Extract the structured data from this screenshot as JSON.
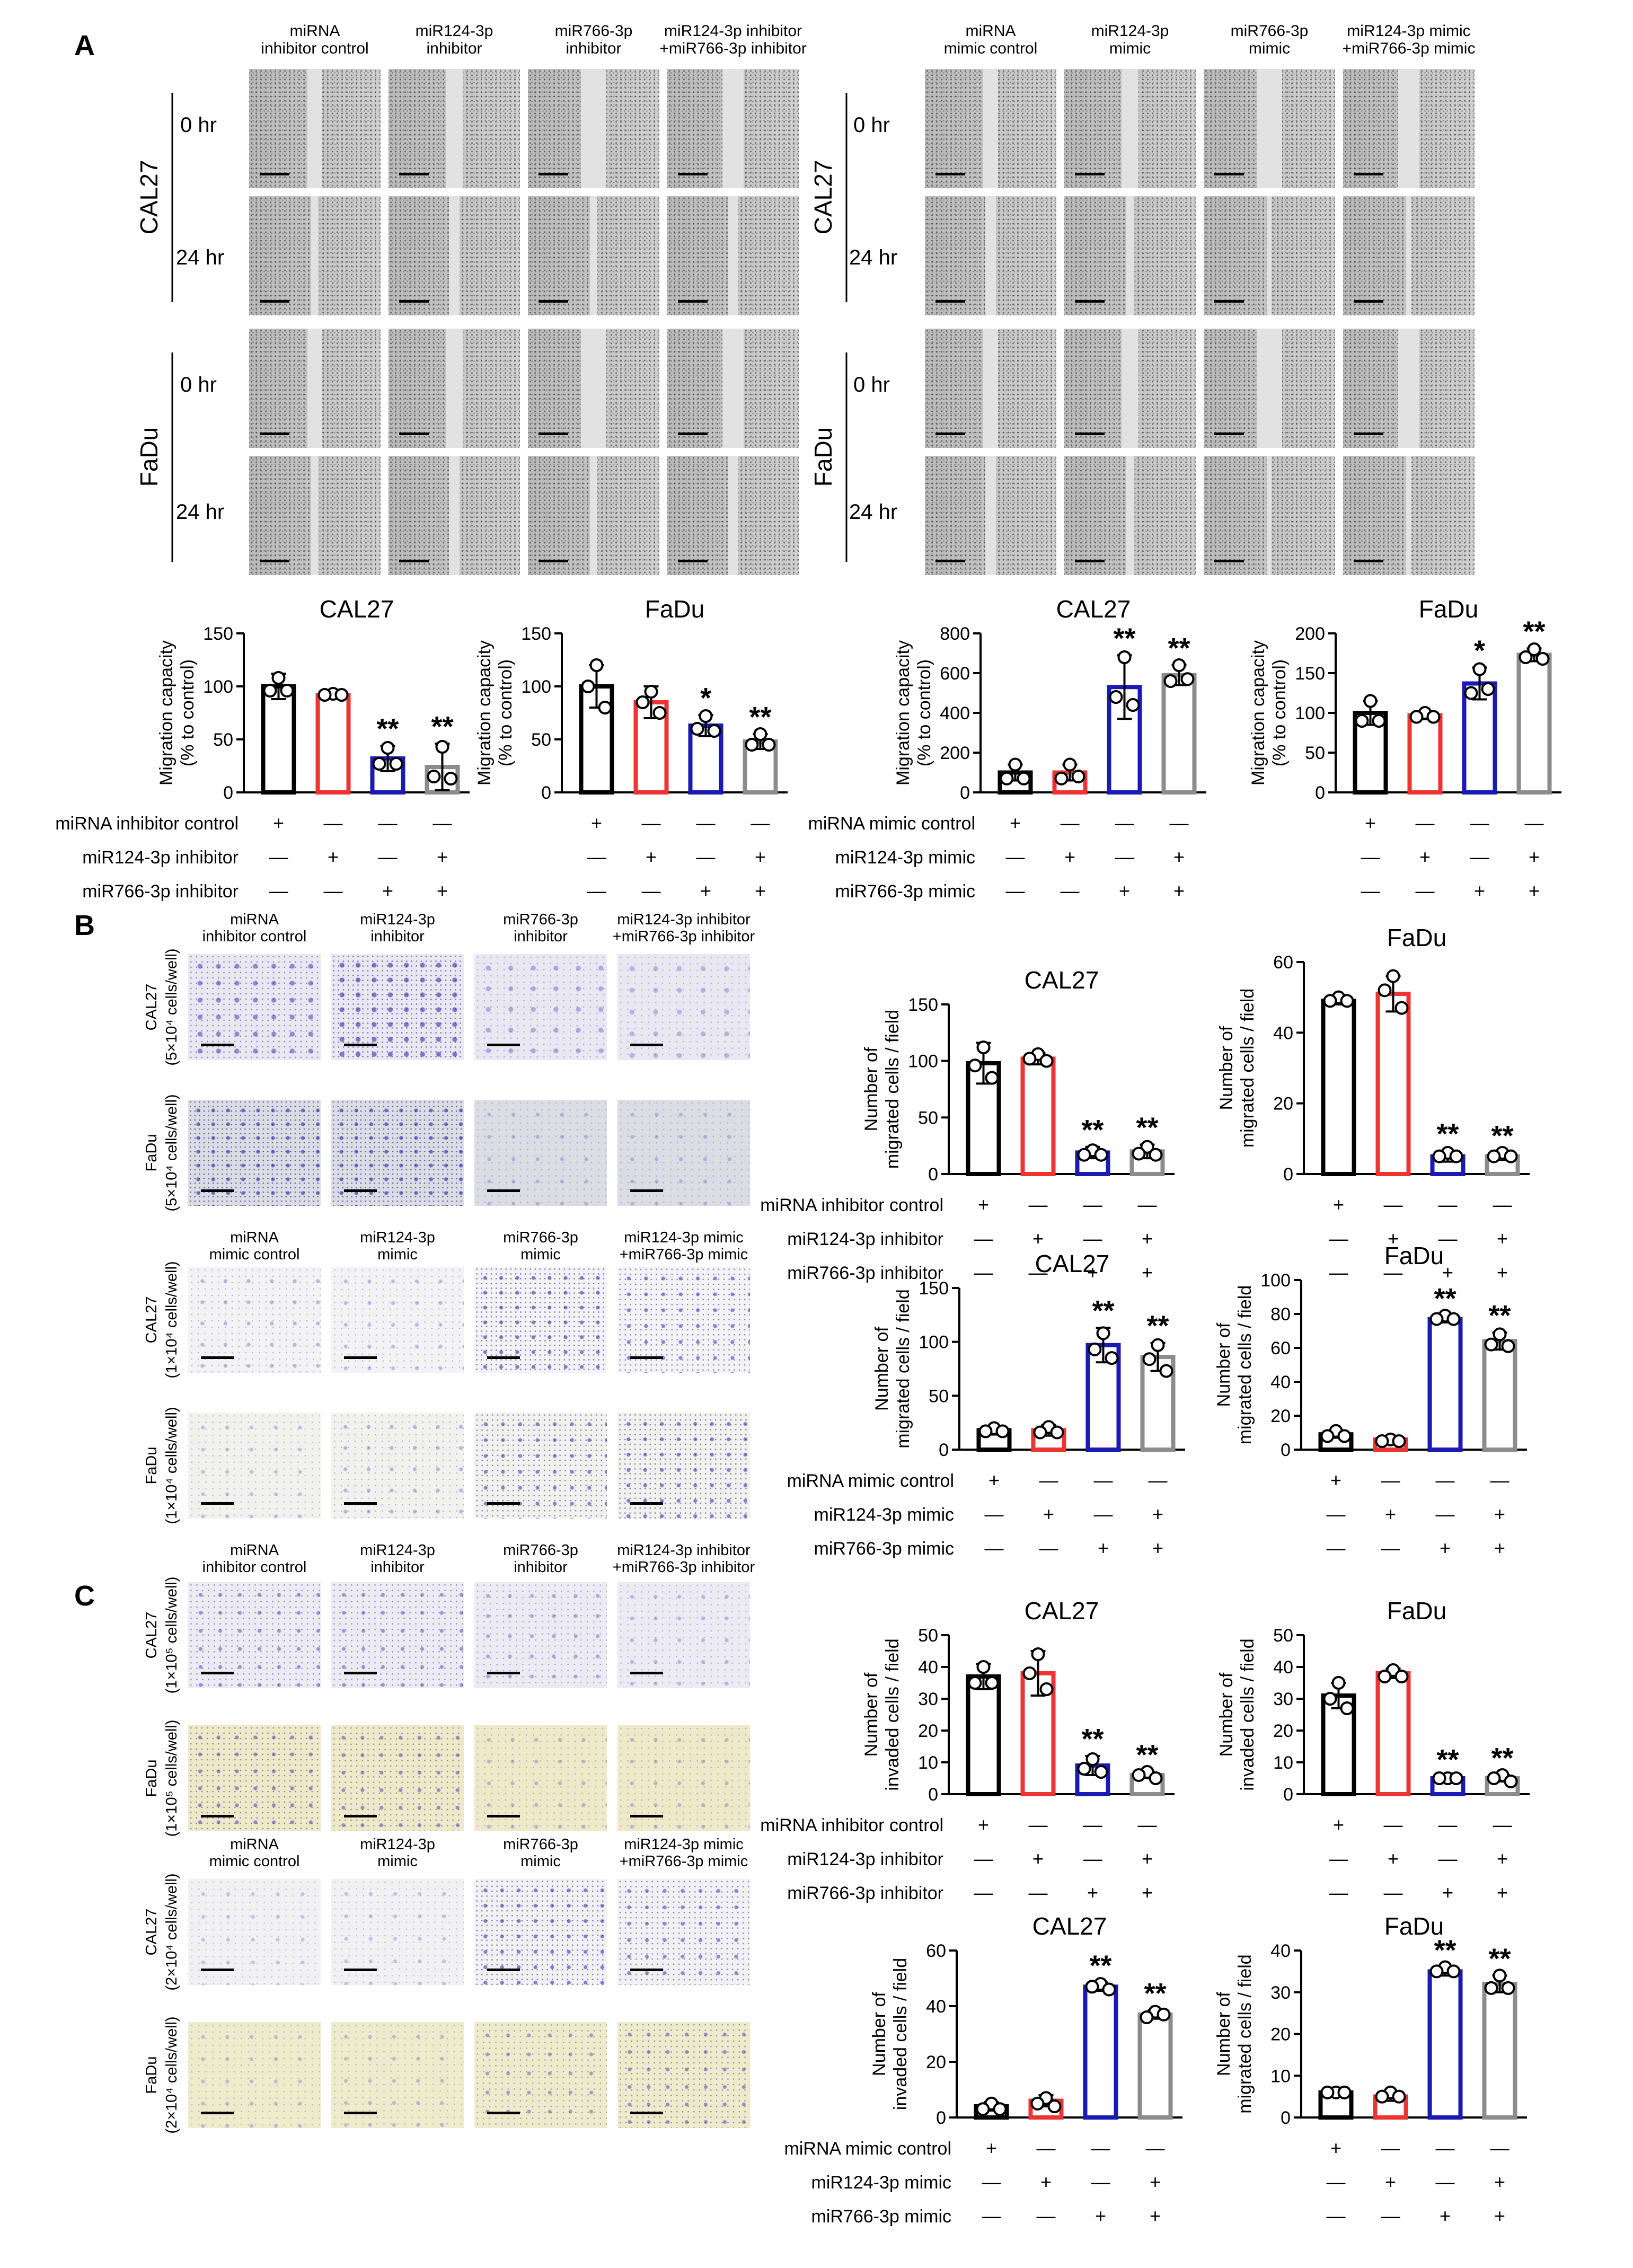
{
  "panels": {
    "a": "A",
    "b": "B",
    "c": "C"
  },
  "lbl": {
    "hr0": "0 hr",
    "hr24": "24 hr",
    "cal27": "CAL27",
    "fadu": "FaDu",
    "plus": "+",
    "minus": "—",
    "star1": "*",
    "star2": "**"
  },
  "cols": {
    "inh": [
      [
        "miRNA",
        "inhibitor control"
      ],
      [
        "miR124-3p",
        "inhibitor"
      ],
      [
        "miR766-3p",
        "inhibitor"
      ],
      [
        "miR124-3p inhibitor",
        "+miR766-3p inhibitor"
      ]
    ],
    "mim": [
      [
        "miRNA",
        "mimic control"
      ],
      [
        "miR124-3p",
        "mimic"
      ],
      [
        "miR766-3p",
        "mimic"
      ],
      [
        "miR124-3p mimic",
        "+miR766-3p mimic"
      ]
    ]
  },
  "density": {
    "b_cal27_inh": [
      "CAL27",
      "(5×10⁴ cells/well)"
    ],
    "b_fadu_inh": [
      "FaDu",
      "(5×10⁴ cells/well)"
    ],
    "b_cal27_mim": [
      "CAL27",
      "(1×10⁴ cells/well)"
    ],
    "b_fadu_mim": [
      "FaDu",
      "(1×10⁴ cells/well)"
    ],
    "c_cal27_inh": [
      "CAL27",
      "(1×10⁵ cells/well)"
    ],
    "c_fadu_inh": [
      "FaDu",
      "(1×10⁵ cells/well)"
    ],
    "c_cal27_mim": [
      "CAL27",
      "(2×10⁴ cells/well)"
    ],
    "c_fadu_mim": [
      "FaDu",
      "(2×10⁴ cells/well)"
    ]
  },
  "rows": {
    "inh": [
      "miRNA inhibitor control",
      "miR124-3p inhibitor",
      "miR766-3p inhibitor"
    ],
    "mim": [
      "miRNA mimic control",
      "miR124-3p mimic",
      "miR766-3p mimic"
    ]
  },
  "colors": {
    "control": "#000000",
    "mir124": "#ee3333",
    "mir766": "#1a1ab4",
    "combo": "#8c8c8c"
  },
  "chart_data": [
    {
      "id": "a1",
      "type": "bar",
      "title": "CAL27",
      "ylabel": [
        "Migration capacity",
        "(% to control)"
      ],
      "ylim": [
        0,
        150
      ],
      "yticks": [
        0,
        50,
        100,
        150
      ],
      "values": [
        100,
        92,
        32,
        24
      ],
      "errors": [
        12,
        2,
        12,
        22
      ],
      "points": [
        [
          108,
          96,
          96
        ],
        [
          93,
          92,
          92
        ],
        [
          42,
          27,
          27
        ],
        [
          43,
          15,
          13
        ]
      ],
      "stars": [
        "",
        "",
        "**",
        "**"
      ],
      "design": "inh"
    },
    {
      "id": "a2",
      "type": "bar",
      "title": "FaDu",
      "ylabel": [
        "Migration capacity",
        "(% to control)"
      ],
      "ylim": [
        0,
        150
      ],
      "yticks": [
        0,
        50,
        100,
        150
      ],
      "values": [
        100,
        85,
        63,
        48
      ],
      "errors": [
        20,
        15,
        10,
        7
      ],
      "points": [
        [
          120,
          100,
          80
        ],
        [
          95,
          85,
          75
        ],
        [
          72,
          60,
          58
        ],
        [
          55,
          45,
          45
        ]
      ],
      "stars": [
        "",
        "",
        "*",
        "**"
      ],
      "design": "inh"
    },
    {
      "id": "a3",
      "type": "bar",
      "title": "CAL27",
      "ylabel": [
        "Migration capacity",
        "(% to control)"
      ],
      "ylim": [
        0,
        800
      ],
      "yticks": [
        0,
        200,
        400,
        600,
        800
      ],
      "values": [
        100,
        100,
        530,
        590
      ],
      "errors": [
        40,
        40,
        160,
        50
      ],
      "points": [
        [
          140,
          70,
          70
        ],
        [
          140,
          70,
          80
        ],
        [
          680,
          480,
          440
        ],
        [
          640,
          560,
          570
        ]
      ],
      "stars": [
        "",
        "",
        "**",
        "**"
      ],
      "design": "mim"
    },
    {
      "id": "a4",
      "type": "bar",
      "title": "FaDu",
      "ylabel": [
        "Migration capacity",
        "(% to control)"
      ],
      "ylim": [
        0,
        200
      ],
      "yticks": [
        0,
        50,
        100,
        150,
        200
      ],
      "values": [
        100,
        97,
        137,
        173
      ],
      "errors": [
        15,
        5,
        20,
        8
      ],
      "points": [
        [
          115,
          90,
          90
        ],
        [
          100,
          95,
          95
        ],
        [
          155,
          125,
          130
        ],
        [
          180,
          170,
          168
        ]
      ],
      "stars": [
        "",
        "",
        "*",
        "**"
      ],
      "design": "mim"
    },
    {
      "id": "b1",
      "type": "bar",
      "title": "CAL27",
      "ylabel": [
        "Number of",
        "migrated cells / field"
      ],
      "ylim": [
        0,
        150
      ],
      "yticks": [
        0,
        50,
        100,
        150
      ],
      "values": [
        98,
        102,
        19,
        20
      ],
      "errors": [
        18,
        5,
        5,
        6
      ],
      "points": [
        [
          112,
          96,
          85
        ],
        [
          106,
          102,
          100
        ],
        [
          21,
          17,
          17
        ],
        [
          24,
          18,
          17
        ]
      ],
      "stars": [
        "",
        "",
        "**",
        "**"
      ],
      "design": "inh"
    },
    {
      "id": "b2",
      "type": "bar",
      "title": "FaDu",
      "ylabel": [
        "Number of",
        "migrated cells / field"
      ],
      "ylim": [
        0,
        60
      ],
      "yticks": [
        0,
        20,
        40,
        60
      ],
      "values": [
        49,
        51,
        5,
        5
      ],
      "errors": [
        1,
        5,
        1.5,
        1
      ],
      "points": [
        [
          50,
          49,
          49
        ],
        [
          56,
          52,
          47
        ],
        [
          6,
          5,
          5
        ],
        [
          6,
          5,
          5
        ]
      ],
      "stars": [
        "",
        "",
        "**",
        "**"
      ],
      "design": "inh"
    },
    {
      "id": "b3",
      "type": "bar",
      "title": "CAL27",
      "ylabel": [
        "Number of",
        "migrated cells / field"
      ],
      "ylim": [
        0,
        150
      ],
      "yticks": [
        0,
        50,
        100,
        150
      ],
      "values": [
        18,
        18,
        97,
        86
      ],
      "errors": [
        4,
        5,
        16,
        13
      ],
      "points": [
        [
          20,
          17,
          17
        ],
        [
          21,
          16,
          16
        ],
        [
          108,
          93,
          85
        ],
        [
          97,
          84,
          73
        ]
      ],
      "stars": [
        "",
        "",
        "**",
        "**"
      ],
      "design": "mim"
    },
    {
      "id": "b4",
      "type": "bar",
      "title": "FaDu",
      "ylabel": [
        "Number of",
        "migrated cells / field"
      ],
      "ylim": [
        0,
        100
      ],
      "yticks": [
        0,
        20,
        40,
        60,
        80,
        100
      ],
      "values": [
        9,
        6,
        77,
        64
      ],
      "errors": [
        2,
        2,
        2,
        5
      ],
      "points": [
        [
          11,
          8,
          8
        ],
        [
          6,
          5,
          5
        ],
        [
          79,
          77,
          77
        ],
        [
          68,
          62,
          61
        ]
      ],
      "stars": [
        "",
        "",
        "**",
        "**"
      ],
      "design": "mim"
    },
    {
      "id": "c1",
      "type": "bar",
      "title": "CAL27",
      "ylabel": [
        "Number of",
        "invaded cells / field"
      ],
      "ylim": [
        0,
        50
      ],
      "yticks": [
        0,
        10,
        20,
        30,
        40,
        50
      ],
      "values": [
        37,
        38,
        9,
        6
      ],
      "errors": [
        4,
        7,
        3,
        1
      ],
      "points": [
        [
          40,
          35,
          35
        ],
        [
          44,
          38,
          33
        ],
        [
          11,
          8,
          7
        ],
        [
          7,
          6,
          5
        ]
      ],
      "stars": [
        "",
        "",
        "**",
        "**"
      ],
      "design": "inh"
    },
    {
      "id": "c2",
      "type": "bar",
      "title": "FaDu",
      "ylabel": [
        "Number of",
        "invaded cells / field"
      ],
      "ylim": [
        0,
        50
      ],
      "yticks": [
        0,
        10,
        20,
        30,
        40,
        50
      ],
      "values": [
        31,
        38,
        5,
        5
      ],
      "errors": [
        4,
        1.5,
        0.5,
        1
      ],
      "points": [
        [
          35,
          30,
          27
        ],
        [
          39,
          37,
          37
        ],
        [
          5,
          5,
          5
        ],
        [
          6,
          5,
          4
        ]
      ],
      "stars": [
        "",
        "",
        "**",
        "**"
      ],
      "design": "inh"
    },
    {
      "id": "c3",
      "type": "bar",
      "title": "CAL27",
      "ylabel": [
        "Number of",
        "invaded cells / field"
      ],
      "ylim": [
        0,
        60
      ],
      "yticks": [
        0,
        20,
        40,
        60
      ],
      "values": [
        4,
        6,
        47,
        37
      ],
      "errors": [
        1.5,
        2,
        1.5,
        1.5
      ],
      "points": [
        [
          5,
          3,
          3
        ],
        [
          7,
          5,
          4
        ],
        [
          48,
          47,
          46
        ],
        [
          38,
          36,
          37
        ]
      ],
      "stars": [
        "",
        "",
        "**",
        "**"
      ],
      "design": "mim"
    },
    {
      "id": "c4",
      "type": "bar",
      "title": "FaDu",
      "ylabel": [
        "Number of",
        "migrated cells / field"
      ],
      "ylim": [
        0,
        40
      ],
      "yticks": [
        0,
        10,
        20,
        30,
        40
      ],
      "values": [
        6,
        5,
        35,
        32
      ],
      "errors": [
        1,
        1,
        1,
        2
      ],
      "points": [
        [
          6,
          6,
          6
        ],
        [
          6,
          5,
          5
        ],
        [
          36,
          35,
          35
        ],
        [
          34,
          31,
          31
        ]
      ],
      "stars": [
        "",
        "",
        "**",
        "**"
      ],
      "design": "mim"
    }
  ]
}
